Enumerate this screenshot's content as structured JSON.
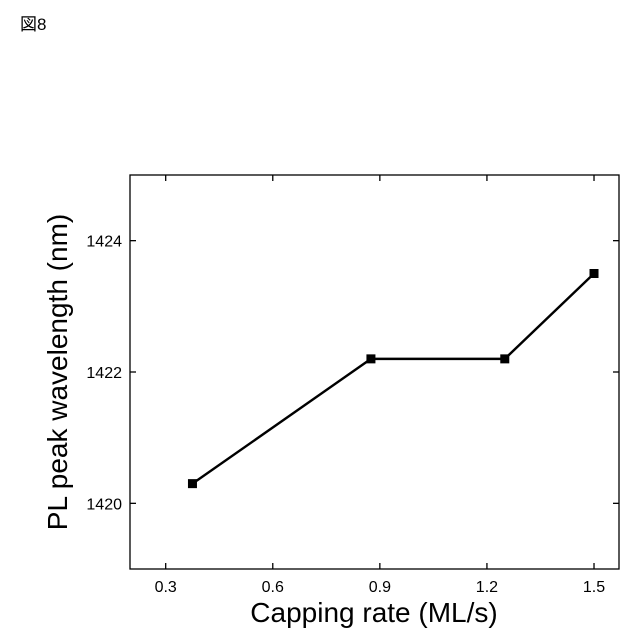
{
  "figure_label": "図8",
  "chart_data": {
    "type": "line",
    "title": "",
    "xlabel": "Capping rate (ML/s)",
    "ylabel": "PL peak wavelength (nm)",
    "xlim": [
      0.2,
      1.57
    ],
    "ylim": [
      1419,
      1425
    ],
    "x_ticks": [
      0.3,
      0.6,
      0.9,
      1.2,
      1.5
    ],
    "x_tick_labels": [
      "0.3",
      "0.6",
      "0.9",
      "1.2",
      "1.5"
    ],
    "y_ticks": [
      1420,
      1422,
      1424
    ],
    "y_tick_labels": [
      "1420",
      "1422",
      "1424"
    ],
    "grid": false,
    "marker": "square",
    "series": [
      {
        "x": [
          0.375,
          0.875,
          1.25,
          1.5
        ],
        "y": [
          1420.3,
          1422.2,
          1422.2,
          1423.5
        ]
      }
    ],
    "colors": {
      "line": "#000000",
      "marker": "#000000"
    }
  }
}
